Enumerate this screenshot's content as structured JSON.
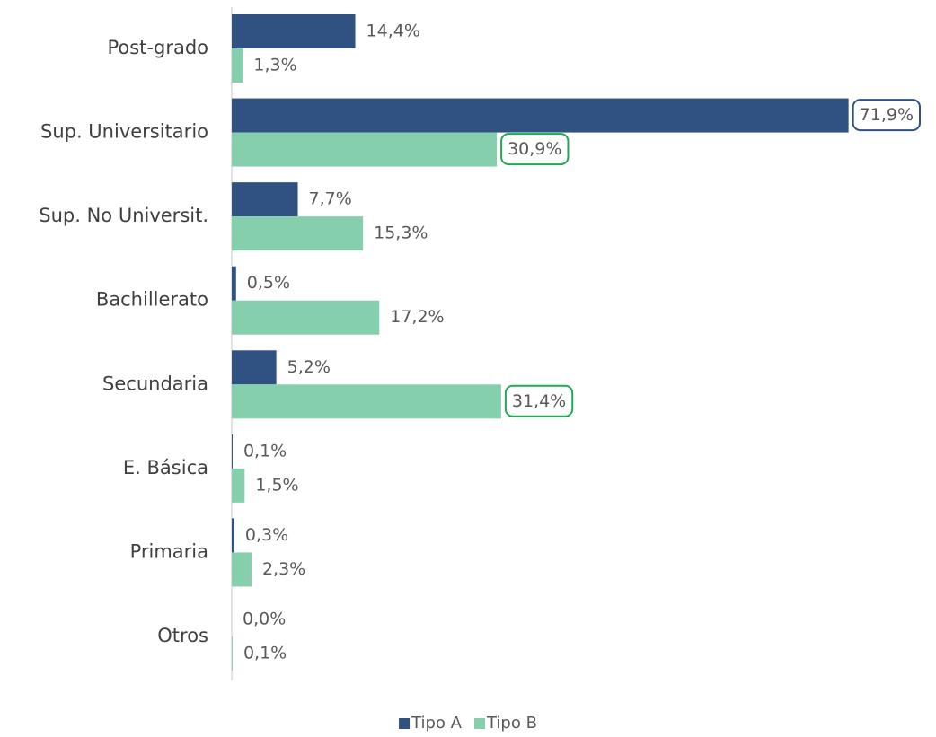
{
  "chart_data": {
    "type": "bar",
    "orientation": "horizontal",
    "categories": [
      "Post-grado",
      "Sup. Universitario",
      "Sup. No Universit.",
      "Bachillerato",
      "Secundaria",
      "E. Básica",
      "Primaria",
      "Otros"
    ],
    "series": [
      {
        "name": "Tipo A",
        "color": "#2f5283",
        "highlight_color": "#2f5283",
        "values": [
          14.4,
          71.9,
          7.7,
          0.5,
          5.2,
          0.1,
          0.3,
          0.0
        ],
        "value_labels": [
          "14,4%",
          "71,9%",
          "7,7%",
          "0,5%",
          "5,2%",
          "0,1%",
          "0,3%",
          "0,0%"
        ],
        "highlight": [
          1
        ]
      },
      {
        "name": "Tipo B",
        "color": "#86cfac",
        "highlight_color": "#1faa52",
        "values": [
          1.3,
          30.9,
          15.3,
          17.2,
          31.4,
          1.5,
          2.3,
          0.1
        ],
        "value_labels": [
          "1,3%",
          "30,9%",
          "15,3%",
          "17,2%",
          "31,4%",
          "1,5%",
          "2,3%",
          "0,1%"
        ],
        "highlight": [
          1,
          4
        ]
      }
    ],
    "xlim": [
      0,
      80
    ],
    "legend": "bottom"
  }
}
